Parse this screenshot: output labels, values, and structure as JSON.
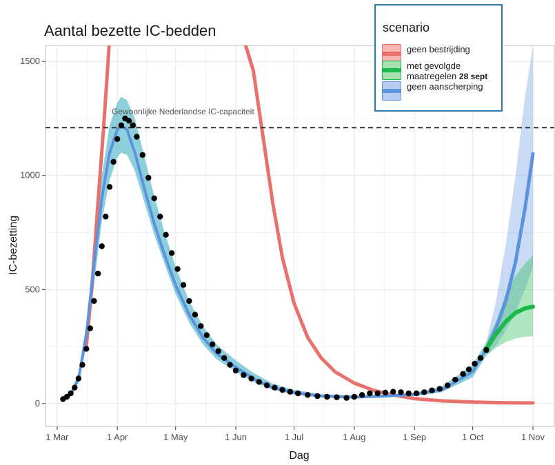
{
  "chart_data": {
    "type": "line",
    "title": "Aantal bezette IC-bedden",
    "xlabel": "Dag",
    "ylabel": "IC-bezetting",
    "xlim": [
      "2020-02-24",
      "2020-11-12"
    ],
    "ylim": [
      -100,
      1570
    ],
    "x_ticks": [
      {
        "date": "2020-03-01",
        "label": "1 Mar"
      },
      {
        "date": "2020-04-01",
        "label": "1 Apr"
      },
      {
        "date": "2020-05-01",
        "label": "1 May"
      },
      {
        "date": "2020-06-01",
        "label": "1 Jun"
      },
      {
        "date": "2020-07-01",
        "label": "1 Jul"
      },
      {
        "date": "2020-08-01",
        "label": "1 Aug"
      },
      {
        "date": "2020-09-01",
        "label": "1 Sep"
      },
      {
        "date": "2020-10-01",
        "label": "1 Oct"
      },
      {
        "date": "2020-11-01",
        "label": "1 Nov"
      }
    ],
    "y_ticks": [
      0,
      500,
      1000,
      1500
    ],
    "grid": true,
    "reference_line": {
      "y": 1210,
      "label": "Gewoonlijke Nederlandse IC-capaciteit"
    },
    "legend": {
      "title": "scenario",
      "placement": "top-right",
      "items": [
        {
          "label": "geen bestrijding",
          "color": "#e8716b",
          "fill": "#f6b7b3"
        },
        {
          "label": "met gevolgde maatregelen",
          "label_suffix": "28 sept",
          "color": "#1bb84a",
          "fill": "#a6e0b3"
        },
        {
          "label": "geen aanscherping",
          "color": "#5b93e0",
          "fill": "#b9cdf2"
        }
      ]
    },
    "colors": {
      "geen_bestrijding": "#e8716b",
      "met_gevolgde_maatregelen": "#1bb84a",
      "geen_aanscherping": "#5b93e0",
      "band": "#5cbccc",
      "observed": "#000000"
    },
    "series": [
      {
        "name": "geen bestrijding",
        "x": [
          "2020-03-16",
          "2020-03-19",
          "2020-03-22",
          "2020-03-25",
          "2020-03-28",
          "2020-06-05",
          "2020-06-10",
          "2020-06-15",
          "2020-06-20",
          "2020-06-25",
          "2020-07-01",
          "2020-07-08",
          "2020-07-15",
          "2020-07-22",
          "2020-08-01",
          "2020-08-11",
          "2020-08-21",
          "2020-09-01",
          "2020-09-15",
          "2020-10-01",
          "2020-10-15",
          "2020-11-01"
        ],
        "y": [
          250,
          520,
          880,
          1220,
          1600,
          1600,
          1460,
          1170,
          880,
          640,
          440,
          290,
          200,
          140,
          90,
          58,
          38,
          22,
          12,
          7,
          4,
          3
        ],
        "gaps_after": [
          4
        ]
      },
      {
        "name": "geen aanscherping",
        "x": [
          "2020-10-08",
          "2020-10-13",
          "2020-10-18",
          "2020-10-23",
          "2020-10-28",
          "2020-11-01"
        ],
        "y": [
          240,
          330,
          450,
          620,
          860,
          1095
        ]
      },
      {
        "name": "met gevolgde maatregelen",
        "x": [
          "2020-10-08",
          "2020-10-13",
          "2020-10-18",
          "2020-10-23",
          "2020-10-28",
          "2020-11-01"
        ],
        "y": [
          240,
          305,
          360,
          398,
          418,
          425
        ]
      },
      {
        "name": "fit",
        "x": [
          "2020-03-04",
          "2020-03-08",
          "2020-03-12",
          "2020-03-16",
          "2020-03-20",
          "2020-03-24",
          "2020-03-28",
          "2020-04-01",
          "2020-04-03",
          "2020-04-06",
          "2020-04-10",
          "2020-04-15",
          "2020-04-20",
          "2020-04-25",
          "2020-05-01",
          "2020-05-08",
          "2020-05-15",
          "2020-05-22",
          "2020-06-01",
          "2020-06-10",
          "2020-06-20",
          "2020-07-01",
          "2020-07-15",
          "2020-08-01",
          "2020-08-15",
          "2020-09-01",
          "2020-09-15",
          "2020-10-01",
          "2020-10-08"
        ],
        "y": [
          15,
          40,
          110,
          300,
          610,
          900,
          1100,
          1200,
          1220,
          1200,
          1100,
          940,
          790,
          660,
          520,
          390,
          290,
          220,
          160,
          110,
          70,
          48,
          33,
          28,
          32,
          40,
          60,
          140,
          240
        ]
      }
    ],
    "bands": [
      {
        "series": "fit",
        "x": [
          "2020-03-04",
          "2020-03-08",
          "2020-03-12",
          "2020-03-16",
          "2020-03-20",
          "2020-03-24",
          "2020-03-28",
          "2020-04-01",
          "2020-04-03",
          "2020-04-06",
          "2020-04-10",
          "2020-04-15",
          "2020-04-20",
          "2020-04-25",
          "2020-05-01",
          "2020-05-08",
          "2020-05-15",
          "2020-05-22",
          "2020-06-01",
          "2020-06-10",
          "2020-06-20",
          "2020-07-01",
          "2020-07-15",
          "2020-08-01",
          "2020-08-15",
          "2020-09-01",
          "2020-09-15",
          "2020-10-01",
          "2020-10-08"
        ],
        "low": [
          12,
          32,
          90,
          250,
          520,
          800,
          980,
          1080,
          1100,
          1090,
          1020,
          880,
          740,
          620,
          480,
          355,
          260,
          195,
          140,
          95,
          60,
          40,
          26,
          22,
          26,
          33,
          50,
          115,
          210
        ],
        "high": [
          18,
          50,
          135,
          350,
          700,
          1000,
          1220,
          1320,
          1345,
          1330,
          1250,
          1080,
          910,
          760,
          600,
          450,
          340,
          260,
          190,
          135,
          88,
          60,
          42,
          36,
          40,
          48,
          75,
          170,
          270
        ]
      },
      {
        "series": "geen aanscherping",
        "x": [
          "2020-10-08",
          "2020-10-13",
          "2020-10-18",
          "2020-10-23",
          "2020-10-28",
          "2020-11-01"
        ],
        "low": [
          210,
          255,
          320,
          400,
          500,
          600
        ],
        "high": [
          270,
          450,
          700,
          1000,
          1350,
          1570
        ]
      },
      {
        "series": "met gevolgde maatregelen",
        "x": [
          "2020-10-08",
          "2020-10-13",
          "2020-10-18",
          "2020-10-23",
          "2020-10-28",
          "2020-11-01"
        ],
        "low": [
          210,
          245,
          270,
          285,
          293,
          295
        ],
        "high": [
          270,
          360,
          480,
          560,
          615,
          650
        ]
      }
    ],
    "observed": {
      "name": "IC-bezetting",
      "x": [
        "2020-03-04",
        "2020-03-06",
        "2020-03-08",
        "2020-03-10",
        "2020-03-12",
        "2020-03-14",
        "2020-03-16",
        "2020-03-18",
        "2020-03-20",
        "2020-03-22",
        "2020-03-24",
        "2020-03-26",
        "2020-03-28",
        "2020-03-30",
        "2020-04-01",
        "2020-04-03",
        "2020-04-05",
        "2020-04-07",
        "2020-04-09",
        "2020-04-11",
        "2020-04-14",
        "2020-04-17",
        "2020-04-20",
        "2020-04-23",
        "2020-04-26",
        "2020-04-29",
        "2020-05-02",
        "2020-05-05",
        "2020-05-08",
        "2020-05-11",
        "2020-05-14",
        "2020-05-17",
        "2020-05-20",
        "2020-05-23",
        "2020-05-26",
        "2020-05-29",
        "2020-06-01",
        "2020-06-05",
        "2020-06-09",
        "2020-06-13",
        "2020-06-17",
        "2020-06-21",
        "2020-06-25",
        "2020-06-29",
        "2020-07-03",
        "2020-07-08",
        "2020-07-13",
        "2020-07-18",
        "2020-07-23",
        "2020-07-28",
        "2020-08-01",
        "2020-08-05",
        "2020-08-09",
        "2020-08-13",
        "2020-08-17",
        "2020-08-21",
        "2020-08-25",
        "2020-08-29",
        "2020-09-02",
        "2020-09-06",
        "2020-09-10",
        "2020-09-14",
        "2020-09-18",
        "2020-09-22",
        "2020-09-26",
        "2020-09-29",
        "2020-10-02",
        "2020-10-05",
        "2020-10-08"
      ],
      "y": [
        20,
        30,
        45,
        70,
        110,
        170,
        240,
        330,
        450,
        570,
        690,
        820,
        950,
        1060,
        1160,
        1220,
        1250,
        1240,
        1220,
        1170,
        1090,
        990,
        900,
        820,
        740,
        660,
        590,
        520,
        450,
        390,
        340,
        300,
        260,
        230,
        200,
        170,
        145,
        125,
        110,
        95,
        80,
        70,
        60,
        52,
        45,
        38,
        33,
        30,
        28,
        25,
        30,
        38,
        45,
        45,
        48,
        52,
        50,
        45,
        45,
        50,
        58,
        65,
        80,
        105,
        130,
        150,
        175,
        200,
        235
      ]
    }
  }
}
